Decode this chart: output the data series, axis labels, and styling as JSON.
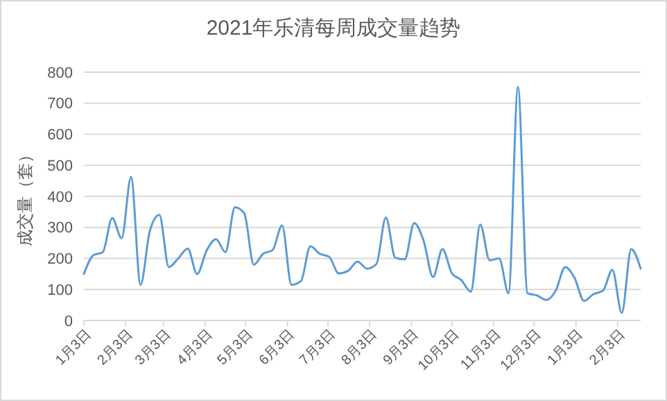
{
  "chart_data": {
    "type": "line",
    "title": "2021年乐清每周成交量趋势",
    "ylabel": "成交量（套）",
    "x": [
      "2021-01-03",
      "2021-01-10",
      "2021-01-17",
      "2021-01-24",
      "2021-01-31",
      "2021-02-07",
      "2021-02-14",
      "2021-02-21",
      "2021-02-28",
      "2021-03-07",
      "2021-03-14",
      "2021-03-21",
      "2021-03-28",
      "2021-04-04",
      "2021-04-11",
      "2021-04-18",
      "2021-04-25",
      "2021-05-02",
      "2021-05-09",
      "2021-05-16",
      "2021-05-23",
      "2021-05-30",
      "2021-06-06",
      "2021-06-13",
      "2021-06-20",
      "2021-06-27",
      "2021-07-04",
      "2021-07-11",
      "2021-07-18",
      "2021-07-25",
      "2021-08-01",
      "2021-08-08",
      "2021-08-15",
      "2021-08-22",
      "2021-08-29",
      "2021-09-05",
      "2021-09-12",
      "2021-09-19",
      "2021-09-26",
      "2021-10-03",
      "2021-10-10",
      "2021-10-17",
      "2021-10-24",
      "2021-10-31",
      "2021-11-07",
      "2021-11-14",
      "2021-11-21",
      "2021-11-28",
      "2021-12-05",
      "2021-12-12",
      "2021-12-19",
      "2021-12-26",
      "2022-01-02",
      "2022-01-09",
      "2022-01-16",
      "2022-01-23",
      "2022-01-30",
      "2022-02-06",
      "2022-02-13",
      "2022-02-20"
    ],
    "series": [
      {
        "color": "#5b9bd5",
        "values": [
          150,
          210,
          220,
          330,
          265,
          462,
          115,
          290,
          340,
          172,
          200,
          232,
          150,
          225,
          262,
          220,
          365,
          345,
          180,
          215,
          227,
          306,
          115,
          127,
          239,
          215,
          205,
          152,
          160,
          190,
          167,
          182,
          332,
          202,
          197,
          314,
          257,
          140,
          230,
          152,
          130,
          93,
          309,
          194,
          200,
          88,
          753,
          88,
          81,
          66,
          96,
          172,
          137,
          63,
          85,
          96,
          163,
          25,
          230,
          167
        ]
      }
    ],
    "xlim": [
      "2021-01-03",
      "2022-02-20"
    ],
    "xticks": [
      {
        "value": "2021-01-03",
        "label": "1月3日"
      },
      {
        "value": "2021-02-03",
        "label": "2月3日"
      },
      {
        "value": "2021-03-03",
        "label": "3月3日"
      },
      {
        "value": "2021-04-03",
        "label": "4月3日"
      },
      {
        "value": "2021-05-03",
        "label": "5月3日"
      },
      {
        "value": "2021-06-03",
        "label": "6月3日"
      },
      {
        "value": "2021-07-03",
        "label": "7月3日"
      },
      {
        "value": "2021-08-03",
        "label": "8月3日"
      },
      {
        "value": "2021-09-03",
        "label": "9月3日"
      },
      {
        "value": "2021-10-03",
        "label": "10月3日"
      },
      {
        "value": "2021-11-03",
        "label": "11月3日"
      },
      {
        "value": "2021-12-03",
        "label": "12月3日"
      },
      {
        "value": "2022-01-03",
        "label": "1月3日"
      },
      {
        "value": "2022-02-03",
        "label": "2月3日"
      }
    ],
    "ylim": [
      0,
      800
    ],
    "yticks": [
      0,
      100,
      200,
      300,
      400,
      500,
      600,
      700,
      800
    ],
    "grid": "y",
    "marker": "none",
    "line_style": "solid"
  }
}
